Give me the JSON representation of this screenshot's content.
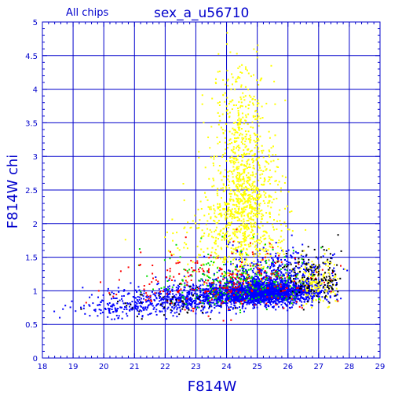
{
  "chart_data": {
    "type": "scatter",
    "title": "sex_a_u56710",
    "subtitle": "All chips",
    "xlabel": "F814W",
    "ylabel": "F814W chi",
    "xlim": [
      18,
      29
    ],
    "ylim": [
      0,
      5
    ],
    "xticks": [
      "18",
      "19",
      "20",
      "21",
      "22",
      "23",
      "24",
      "25",
      "26",
      "27",
      "28",
      "29"
    ],
    "yticks": [
      "0",
      "0.5",
      "1",
      "1.5",
      "2",
      "2.5",
      "3",
      "3.5",
      "4",
      "4.5",
      "5"
    ],
    "grid": true,
    "minor_ticks_per_major": 5,
    "colors": {
      "axes": "#0000cc",
      "grid": "#0000cc",
      "text": "#0000cc"
    },
    "series": [
      {
        "color": "#0000ff",
        "clusters": [
          {
            "x_mean": 25.2,
            "x_sd": 0.9,
            "y_mean": 0.95,
            "y_sd": 0.12,
            "count": 2200
          },
          {
            "x_mean": 23.0,
            "x_sd": 1.1,
            "y_mean": 0.85,
            "y_sd": 0.12,
            "count": 600
          },
          {
            "x_mean": 20.8,
            "x_sd": 1.0,
            "y_mean": 0.72,
            "y_sd": 0.1,
            "count": 160
          },
          {
            "x_mean": 25.6,
            "x_sd": 0.9,
            "y_mean": 1.25,
            "y_sd": 0.18,
            "count": 300
          }
        ]
      },
      {
        "color": "#ffff00",
        "clusters": [
          {
            "x_mean": 24.6,
            "x_sd": 0.55,
            "y_mean": 2.1,
            "y_sd": 0.7,
            "count": 900
          },
          {
            "x_mean": 24.4,
            "x_sd": 0.4,
            "y_mean": 3.4,
            "y_sd": 0.6,
            "count": 220
          },
          {
            "x_mean": 26.9,
            "x_sd": 0.4,
            "y_mean": 1.05,
            "y_sd": 0.2,
            "count": 160
          },
          {
            "x_mean": 24.0,
            "x_sd": 1.0,
            "y_mean": 1.6,
            "y_sd": 0.4,
            "count": 200
          }
        ]
      },
      {
        "color": "#00dd00",
        "clusters": [
          {
            "x_mean": 24.5,
            "x_sd": 1.3,
            "y_mean": 1.05,
            "y_sd": 0.25,
            "count": 260
          }
        ]
      },
      {
        "color": "#ff0000",
        "clusters": [
          {
            "x_mean": 24.0,
            "x_sd": 1.6,
            "y_mean": 1.0,
            "y_sd": 0.28,
            "count": 260
          }
        ]
      },
      {
        "color": "#000000",
        "clusters": [
          {
            "x_mean": 26.8,
            "x_sd": 0.5,
            "y_mean": 1.15,
            "y_sd": 0.25,
            "count": 140
          },
          {
            "x_mean": 22.0,
            "x_sd": 1.2,
            "y_mean": 0.75,
            "y_sd": 0.15,
            "count": 50
          }
        ]
      }
    ]
  }
}
